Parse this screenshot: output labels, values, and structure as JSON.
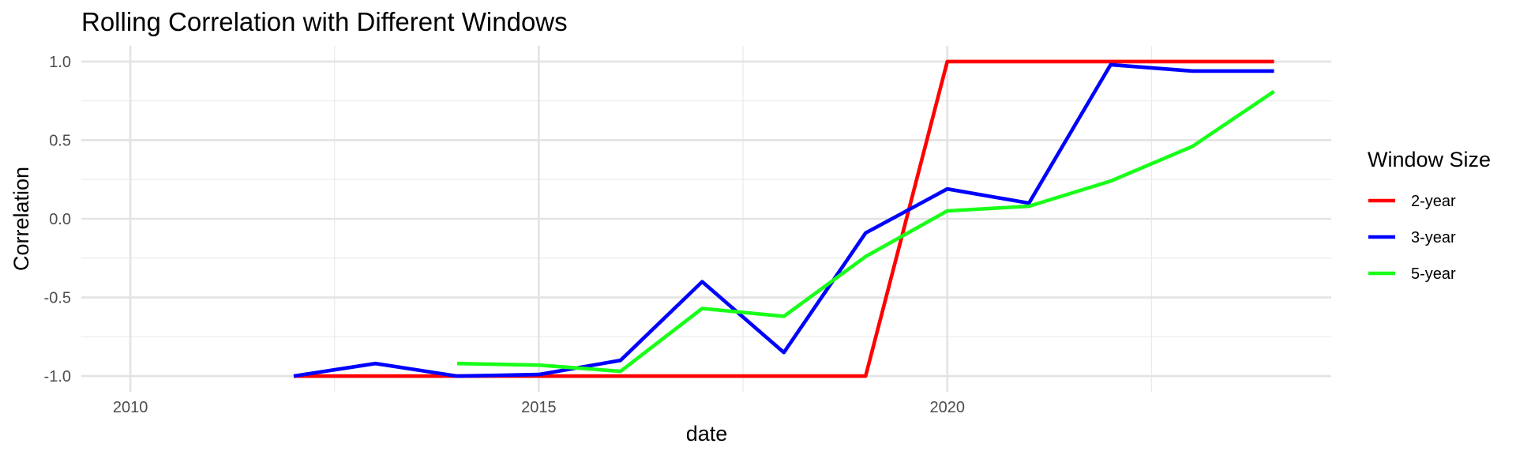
{
  "chart_data": {
    "type": "line",
    "title": "Rolling Correlation with Different Windows",
    "xlabel": "date",
    "ylabel": "Correlation",
    "xlim": [
      2009.4,
      2024.7
    ],
    "ylim": [
      -1.1,
      1.1
    ],
    "x_ticks": [
      2010,
      2015,
      2020
    ],
    "x_tick_labels": [
      "2010",
      "2015",
      "2020"
    ],
    "y_ticks": [
      -1.0,
      -0.5,
      0.0,
      0.5,
      1.0
    ],
    "y_tick_labels": [
      "-1.0",
      "-0.5",
      "0.0",
      "0.5",
      "1.0"
    ],
    "grid": true,
    "legend": {
      "title": "Window Size",
      "placement": "right"
    },
    "series": [
      {
        "name": "2-year",
        "color": "#ff0000",
        "x": [
          2012,
          2013,
          2014,
          2015,
          2016,
          2017,
          2018,
          2019,
          2020,
          2021,
          2022,
          2023,
          2024
        ],
        "y": [
          -1.0,
          -1.0,
          -1.0,
          -1.0,
          -1.0,
          -1.0,
          -1.0,
          -1.0,
          1.0,
          1.0,
          1.0,
          1.0,
          1.0
        ]
      },
      {
        "name": "3-year",
        "color": "#0000ff",
        "x": [
          2012,
          2013,
          2014,
          2015,
          2016,
          2017,
          2018,
          2019,
          2020,
          2021,
          2022,
          2023,
          2024
        ],
        "y": [
          -1.0,
          -0.92,
          -1.0,
          -0.99,
          -0.9,
          -0.4,
          -0.85,
          -0.09,
          0.19,
          0.1,
          0.98,
          0.94,
          0.94
        ]
      },
      {
        "name": "5-year",
        "color": "#1aff1a",
        "x": [
          2014,
          2015,
          2016,
          2017,
          2018,
          2019,
          2020,
          2021,
          2022,
          2023,
          2024
        ],
        "y": [
          -0.92,
          -0.93,
          -0.97,
          -0.57,
          -0.62,
          -0.24,
          0.05,
          0.08,
          0.24,
          0.46,
          0.81
        ]
      }
    ]
  }
}
